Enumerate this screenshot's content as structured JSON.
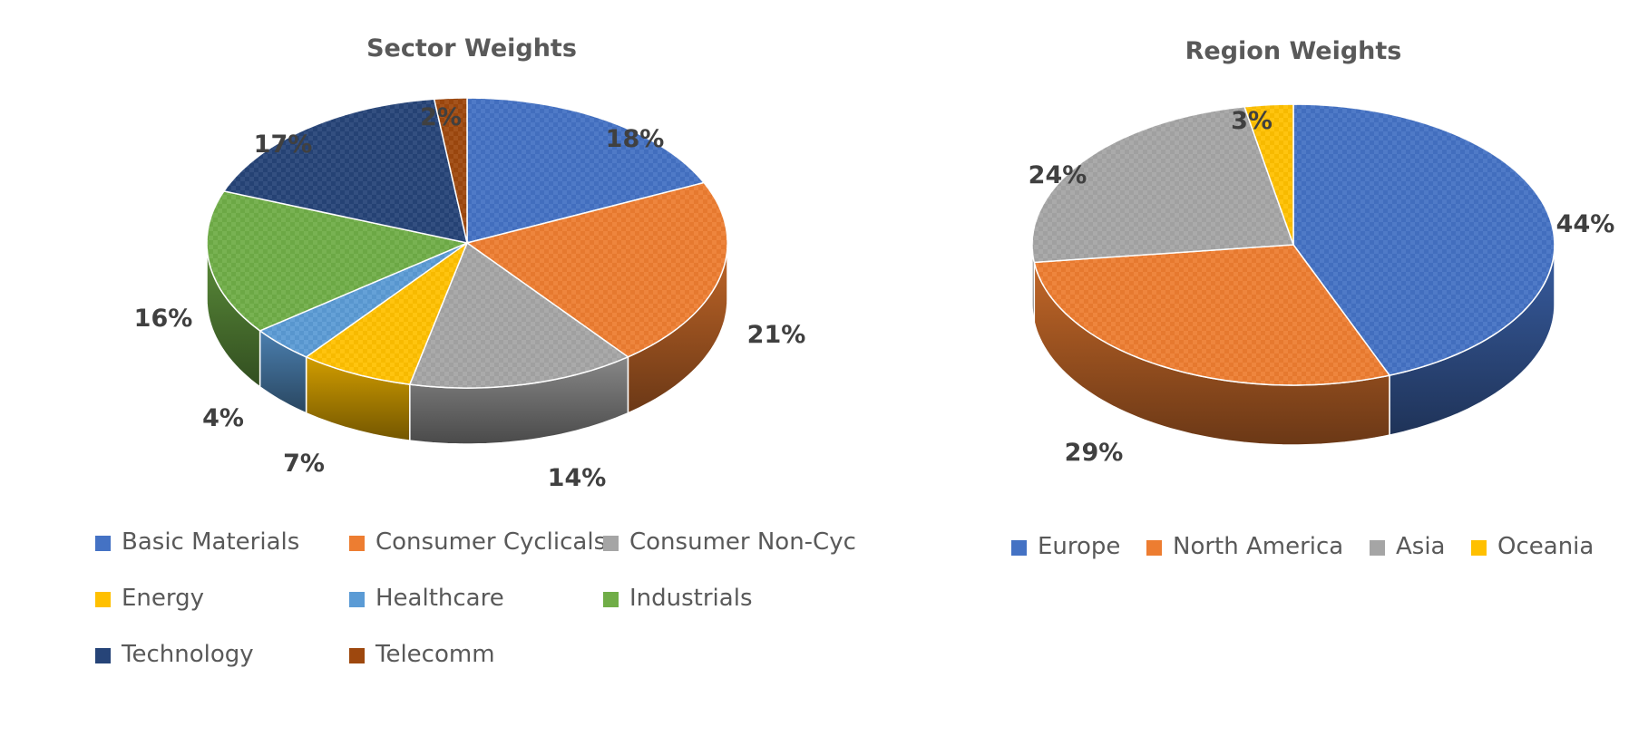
{
  "chart_data": [
    {
      "type": "pie",
      "title": "Sector Weights",
      "categories": [
        "Basic Materials",
        "Consumer Cyclicals",
        "Consumer Non-Cyc",
        "Energy",
        "Healthcare",
        "Industrials",
        "Technology",
        "Telecomm"
      ],
      "values": [
        18,
        21,
        14,
        7,
        4,
        16,
        17,
        2
      ],
      "labels": [
        "18%",
        "21%",
        "14%",
        "7%",
        "4%",
        "16%",
        "17%",
        "2%"
      ],
      "colors": [
        "#4472C4",
        "#ED7D31",
        "#A5A5A5",
        "#FFC000",
        "#5B9BD5",
        "#70AD47",
        "#264478",
        "#9E480E"
      ],
      "legend_position": "bottom",
      "style": "3d-pie"
    },
    {
      "type": "pie",
      "title": "Region Weights",
      "categories": [
        "Europe",
        "North America",
        "Asia",
        "Oceania"
      ],
      "values": [
        44,
        29,
        24,
        3
      ],
      "labels": [
        "44%",
        "29%",
        "24%",
        "3%"
      ],
      "colors": [
        "#4472C4",
        "#ED7D31",
        "#A5A5A5",
        "#FFC000"
      ],
      "legend_position": "bottom",
      "style": "3d-pie"
    }
  ]
}
